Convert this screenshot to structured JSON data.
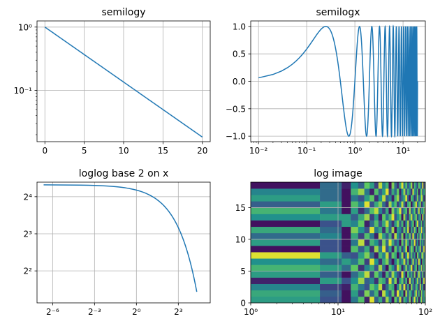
{
  "line_color": "#1f77b4",
  "grid_color": "#b0b0b0",
  "chart_data": [
    {
      "type": "line",
      "title": "semilogy",
      "xscale": "linear",
      "yscale": "log",
      "grid": true,
      "xlim": [
        -1,
        21
      ],
      "ylim": [
        0.0155,
        1.25
      ],
      "x_ticks": [
        0,
        5,
        10,
        15,
        20
      ],
      "x_tick_labels": [
        "0",
        "5",
        "10",
        "15",
        "20"
      ],
      "y_ticks": [
        1,
        0.1
      ],
      "y_tick_labels": [
        "10⁰",
        "10⁻¹"
      ],
      "series": [
        {
          "function": "exp(-x/5)",
          "x_range": [
            0,
            20
          ],
          "samples": 101
        }
      ]
    },
    {
      "type": "line",
      "title": "semilogx",
      "xscale": "log",
      "yscale": "linear",
      "grid": true,
      "xlim": [
        0.0069,
        29
      ],
      "ylim": [
        -1.1,
        1.1
      ],
      "x_ticks": [
        0.01,
        0.1,
        1,
        10
      ],
      "x_tick_labels": [
        "10⁻²",
        "10⁻¹",
        "10⁰",
        "10¹"
      ],
      "y_ticks": [
        -1.0,
        -0.5,
        0.0,
        0.5,
        1.0
      ],
      "y_tick_labels": [
        "−1.0",
        "−0.5",
        "0.0",
        "0.5",
        "1.0"
      ],
      "series": [
        {
          "function": "sin(2*pi*x)",
          "x_range": [
            0.01,
            20
          ],
          "x_step": 0.01
        }
      ]
    },
    {
      "type": "line",
      "title": "loglog base 2 on x",
      "xscale": "log2",
      "yscale": "log2",
      "grid": true,
      "xlim": [
        0.0072,
        39
      ],
      "ylim": [
        2.2,
        21
      ],
      "x_ticks": [
        0.015625,
        0.125,
        1,
        8
      ],
      "x_tick_labels": [
        "2⁻⁶",
        "2⁻³",
        "2⁰",
        "2³"
      ],
      "y_ticks": [
        16,
        8,
        4
      ],
      "y_tick_labels": [
        "2⁴",
        "2³",
        "2²"
      ],
      "series": [
        {
          "function": "20*exp(-x/10)",
          "x_range": [
            0.01,
            20
          ],
          "samples": 400
        }
      ]
    },
    {
      "type": "heatmap",
      "title": "log image",
      "xscale": "log",
      "yscale": "linear",
      "grid": true,
      "xlim": [
        1,
        100
      ],
      "ylim": [
        0,
        19
      ],
      "x_ticks": [
        1,
        10,
        100
      ],
      "x_tick_labels": [
        "10⁰",
        "10¹",
        "10²"
      ],
      "y_ticks": [
        0,
        5,
        10,
        15
      ],
      "y_tick_labels": [
        "0",
        "5",
        "10",
        "15"
      ],
      "colormap": [
        "#440154",
        "#3b528b",
        "#21918c",
        "#5ec962",
        "#fde725"
      ],
      "x_edges": [
        1,
        6.2,
        11,
        14,
        17,
        20,
        23,
        26,
        29,
        32,
        35,
        38,
        41,
        44,
        47,
        50,
        53,
        56,
        59,
        62,
        65,
        68,
        71,
        74,
        77,
        80,
        83,
        86,
        89,
        92,
        95,
        98,
        100
      ],
      "rows": 19,
      "values_note_hidden": false,
      "values": [
        [
          0.55,
          0.25,
          0.05,
          0.4,
          0.7,
          0.1,
          0.95,
          0.3,
          0.6,
          0.2,
          0.85,
          0.45,
          0.05,
          0.75,
          0.35,
          0.9,
          0.15,
          0.65,
          0.5,
          0.25,
          0.8,
          0.1,
          0.55,
          0.95,
          0.3,
          0.7,
          0.05,
          0.45,
          0.85,
          0.2,
          0.6,
          0.4
        ],
        [
          0.6,
          0.3,
          0.05,
          0.55,
          0.2,
          0.8,
          0.35,
          0.65,
          0.1,
          0.9,
          0.5,
          0.25,
          0.75,
          0.15,
          0.95,
          0.4,
          0.6,
          0.05,
          0.85,
          0.3,
          0.7,
          0.45,
          0.15,
          0.55,
          0.9,
          0.25,
          0.65,
          0.1,
          0.8,
          0.35,
          0.5,
          0.95
        ],
        [
          0.45,
          0.2,
          0.1,
          0.65,
          0.4,
          0.25,
          0.75,
          0.55,
          0.9,
          0.15,
          0.35,
          0.7,
          0.6,
          0.05,
          0.45,
          0.85,
          0.3,
          0.95,
          0.2,
          0.6,
          0.1,
          0.8,
          0.4,
          0.25,
          0.7,
          0.55,
          0.15,
          0.9,
          0.35,
          0.65,
          0.05,
          0.45
        ],
        [
          0.1,
          0.55,
          0.25,
          0.5,
          0.85,
          0.3,
          0.45,
          0.15,
          0.7,
          0.6,
          0.2,
          0.95,
          0.4,
          0.8,
          0.1,
          0.55,
          0.75,
          0.25,
          0.65,
          0.05,
          0.9,
          0.35,
          0.6,
          0.15,
          0.5,
          0.85,
          0.3,
          0.7,
          0.1,
          0.45,
          0.95,
          0.2
        ],
        [
          0.55,
          0.3,
          0.05,
          0.35,
          0.6,
          0.9,
          0.2,
          0.75,
          0.4,
          0.1,
          0.65,
          0.3,
          0.85,
          0.5,
          0.25,
          0.15,
          0.95,
          0.45,
          0.05,
          0.7,
          0.35,
          0.6,
          0.2,
          0.8,
          0.1,
          0.4,
          0.9,
          0.55,
          0.25,
          0.75,
          0.15,
          0.65
        ],
        [
          0.65,
          0.55,
          0.35,
          0.75,
          0.15,
          0.45,
          0.6,
          0.25,
          0.85,
          0.35,
          0.05,
          0.7,
          0.5,
          0.2,
          0.9,
          0.65,
          0.1,
          0.4,
          0.8,
          0.3,
          0.55,
          0.95,
          0.15,
          0.45,
          0.75,
          0.05,
          0.6,
          0.35,
          0.85,
          0.2,
          0.7,
          0.3
        ],
        [
          0.5,
          0.35,
          0.55,
          0.4,
          0.7,
          0.2,
          0.95,
          0.5,
          0.15,
          0.6,
          0.8,
          0.3,
          0.05,
          0.45,
          0.75,
          0.35,
          0.55,
          0.9,
          0.25,
          0.65,
          0.1,
          0.4,
          0.85,
          0.3,
          0.6,
          0.2,
          0.95,
          0.5,
          0.05,
          0.7,
          0.4,
          0.8
        ],
        [
          0.95,
          0.55,
          0.3,
          0.25,
          0.55,
          0.8,
          0.35,
          0.1,
          0.65,
          0.45,
          0.9,
          0.2,
          0.75,
          0.6,
          0.05,
          0.4,
          0.85,
          0.15,
          0.5,
          0.95,
          0.3,
          0.7,
          0.25,
          0.55,
          0.05,
          0.8,
          0.45,
          0.15,
          0.65,
          0.9,
          0.35,
          0.55
        ],
        [
          0.05,
          0.25,
          0.05,
          0.7,
          0.3,
          0.6,
          0.15,
          0.85,
          0.4,
          0.95,
          0.25,
          0.55,
          0.1,
          0.75,
          0.35,
          0.65,
          0.2,
          0.5,
          0.9,
          0.05,
          0.45,
          0.8,
          0.6,
          0.1,
          0.7,
          0.3,
          0.55,
          0.85,
          0.2,
          0.4,
          0.95,
          0.15
        ],
        [
          0.55,
          0.25,
          0.05,
          0.4,
          0.9,
          0.15,
          0.65,
          0.5,
          0.2,
          0.8,
          0.35,
          0.95,
          0.6,
          0.25,
          0.45,
          0.05,
          0.75,
          0.3,
          0.85,
          0.55,
          0.15,
          0.65,
          0.4,
          0.95,
          0.2,
          0.5,
          0.1,
          0.75,
          0.35,
          0.6,
          0.25,
          0.85
        ],
        [
          0.35,
          0.45,
          0.05,
          0.6,
          0.2,
          0.7,
          0.4,
          0.1,
          0.85,
          0.55,
          0.3,
          0.65,
          0.15,
          0.9,
          0.5,
          0.25,
          0.8,
          0.05,
          0.6,
          0.35,
          0.75,
          0.2,
          0.95,
          0.45,
          0.1,
          0.65,
          0.3,
          0.85,
          0.55,
          0.15,
          0.7,
          0.4
        ],
        [
          0.6,
          0.35,
          0.05,
          0.8,
          0.5,
          0.25,
          0.95,
          0.4,
          0.6,
          0.15,
          0.7,
          0.3,
          0.85,
          0.05,
          0.55,
          0.45,
          0.2,
          0.75,
          0.35,
          0.9,
          0.1,
          0.6,
          0.25,
          0.8,
          0.45,
          0.05,
          0.7,
          0.4,
          0.95,
          0.3,
          0.55,
          0.15
        ],
        [
          0.05,
          0.25,
          0.55,
          0.45,
          0.75,
          0.1,
          0.35,
          0.7,
          0.25,
          0.6,
          0.9,
          0.4,
          0.15,
          0.55,
          0.8,
          0.3,
          0.65,
          0.1,
          0.45,
          0.85,
          0.2,
          0.5,
          0.75,
          0.05,
          0.6,
          0.95,
          0.35,
          0.25,
          0.7,
          0.1,
          0.45,
          0.8
        ],
        [
          0.5,
          0.55,
          0.55,
          0.3,
          0.6,
          0.85,
          0.2,
          0.55,
          0.1,
          0.75,
          0.4,
          0.65,
          0.95,
          0.25,
          0.5,
          0.7,
          0.05,
          0.85,
          0.35,
          0.15,
          0.6,
          0.9,
          0.3,
          0.55,
          0.8,
          0.2,
          0.45,
          0.65,
          0.05,
          0.9,
          0.35,
          0.55
        ],
        [
          0.65,
          0.4,
          0.05,
          0.55,
          0.15,
          0.35,
          0.7,
          0.9,
          0.45,
          0.2,
          0.6,
          0.05,
          0.8,
          0.4,
          0.65,
          0.95,
          0.25,
          0.55,
          0.7,
          0.1,
          0.85,
          0.3,
          0.5,
          0.75,
          0.15,
          0.4,
          0.9,
          0.2,
          0.6,
          0.45,
          0.8,
          0.05
        ],
        [
          0.3,
          0.55,
          0.05,
          0.7,
          0.45,
          0.95,
          0.25,
          0.6,
          0.8,
          0.35,
          0.15,
          0.85,
          0.5,
          0.7,
          0.2,
          0.45,
          0.9,
          0.35,
          0.1,
          0.6,
          0.75,
          0.05,
          0.4,
          0.65,
          0.95,
          0.25,
          0.55,
          0.8,
          0.15,
          0.35,
          0.6,
          0.9
        ],
        [
          0.55,
          0.35,
          0.05,
          0.4,
          0.25,
          0.55,
          0.75,
          0.15,
          0.5,
          0.9,
          0.3,
          0.45,
          0.1,
          0.65,
          0.85,
          0.2,
          0.4,
          0.6,
          0.95,
          0.3,
          0.05,
          0.7,
          0.55,
          0.15,
          0.35,
          0.8,
          0.25,
          0.5,
          0.9,
          0.65,
          0.1,
          0.45
        ],
        [
          0.45,
          0.35,
          0.05,
          0.65,
          0.85,
          0.4,
          0.1,
          0.7,
          0.3,
          0.55,
          0.95,
          0.2,
          0.6,
          0.35,
          0.75,
          0.1,
          0.5,
          0.85,
          0.25,
          0.65,
          0.4,
          0.15,
          0.9,
          0.55,
          0.3,
          0.7,
          0.05,
          0.45,
          0.8,
          0.25,
          0.55,
          0.75
        ],
        [
          0.05,
          0.35,
          0.1,
          0.5,
          0.3,
          0.75,
          0.55,
          0.2,
          0.9,
          0.45,
          0.65,
          0.05,
          0.8,
          0.35,
          0.15,
          0.6,
          0.95,
          0.4,
          0.7,
          0.25,
          0.5,
          0.85,
          0.1,
          0.65,
          0.4,
          0.2,
          0.75,
          0.55,
          0.3,
          0.95,
          0.15,
          0.6
        ]
      ]
    }
  ]
}
